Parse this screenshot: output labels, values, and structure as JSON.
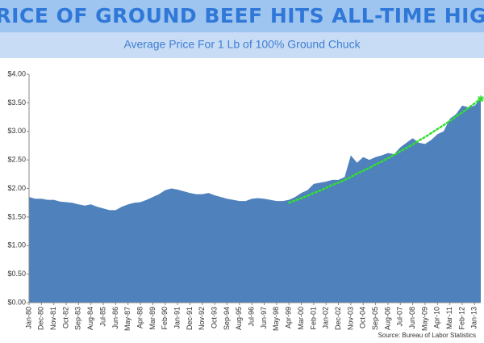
{
  "chart_data": {
    "type": "area",
    "title": "PRICE OF GROUND BEEF HITS ALL-TIME HIGH",
    "subtitle": "Average Price For 1 Lb of 100% Ground Chuck",
    "source": "Source: Bureau of Labor Statistics",
    "categories": [
      "Jan-80",
      null,
      "Dec-80",
      null,
      "Nov-81",
      null,
      "Oct-82",
      null,
      "Sep-83",
      null,
      "Aug-84",
      null,
      "Jul-85",
      null,
      "Jun-86",
      null,
      "May-87",
      null,
      "Apr-88",
      null,
      "Mar-89",
      null,
      "Feb-90",
      null,
      "Jan-91",
      null,
      "Dec-91",
      null,
      "Nov-92",
      null,
      "Oct-93",
      null,
      "Sep-94",
      null,
      "Aug-95",
      null,
      "Jul-96",
      null,
      "Jun-97",
      null,
      "May-98",
      null,
      "Apr-99",
      null,
      "Mar-00",
      null,
      "Feb-01",
      null,
      "Jan-02",
      null,
      "Dec-02",
      null,
      "Nov-03",
      null,
      "Oct-04",
      null,
      "Sep-05",
      null,
      "Aug-06",
      null,
      "Jul-07",
      null,
      "Jun-08",
      null,
      "May-09",
      null,
      "Apr-10",
      null,
      "Mar-11",
      null,
      "Feb-12",
      null,
      "Jan-13",
      null
    ],
    "series": [
      {
        "type": "area",
        "color": "#4f81bd",
        "values": [
          1.85,
          1.82,
          1.82,
          1.8,
          1.8,
          1.77,
          1.76,
          1.75,
          1.72,
          1.7,
          1.72,
          1.68,
          1.65,
          1.62,
          1.62,
          1.68,
          1.72,
          1.75,
          1.76,
          1.8,
          1.85,
          1.9,
          1.97,
          2.0,
          1.98,
          1.95,
          1.92,
          1.9,
          1.9,
          1.92,
          1.88,
          1.85,
          1.82,
          1.8,
          1.78,
          1.78,
          1.82,
          1.83,
          1.82,
          1.8,
          1.78,
          1.78,
          1.8,
          1.85,
          1.92,
          1.97,
          2.08,
          2.1,
          2.12,
          2.15,
          2.15,
          2.2,
          2.58,
          2.45,
          2.55,
          2.5,
          2.55,
          2.58,
          2.62,
          2.6,
          2.72,
          2.8,
          2.88,
          2.8,
          2.78,
          2.85,
          2.95,
          3.0,
          3.22,
          3.3,
          3.45,
          3.42,
          3.45,
          3.57
        ]
      },
      {
        "type": "line",
        "color": "#33dd33",
        "values": [
          null,
          null,
          null,
          null,
          null,
          null,
          null,
          null,
          null,
          null,
          null,
          null,
          null,
          null,
          null,
          null,
          null,
          null,
          null,
          null,
          null,
          null,
          null,
          null,
          null,
          null,
          null,
          null,
          null,
          null,
          null,
          null,
          null,
          null,
          null,
          null,
          null,
          null,
          null,
          null,
          null,
          null,
          1.75,
          1.79,
          1.83,
          1.87,
          1.92,
          1.96,
          2.01,
          2.06,
          2.1,
          2.15,
          2.2,
          2.26,
          2.31,
          2.36,
          2.42,
          2.47,
          2.53,
          2.59,
          2.65,
          2.71,
          2.77,
          2.84,
          2.9,
          2.97,
          3.04,
          3.11,
          3.18,
          3.26,
          3.33,
          3.41,
          3.49,
          3.57
        ]
      }
    ],
    "ylim": [
      0,
      4
    ],
    "yticks": [
      {
        "value": 0,
        "label": "$0.00"
      },
      {
        "value": 0.5,
        "label": "$0.50"
      },
      {
        "value": 1,
        "label": "$1.00"
      },
      {
        "value": 1.5,
        "label": "$1.50"
      },
      {
        "value": 2,
        "label": "$2.00"
      },
      {
        "value": 2.5,
        "label": "$2.50"
      },
      {
        "value": 3,
        "label": "$3.00"
      },
      {
        "value": 3.5,
        "label": "$3.50"
      },
      {
        "value": 4,
        "label": "$4.00"
      }
    ],
    "grid": false
  }
}
